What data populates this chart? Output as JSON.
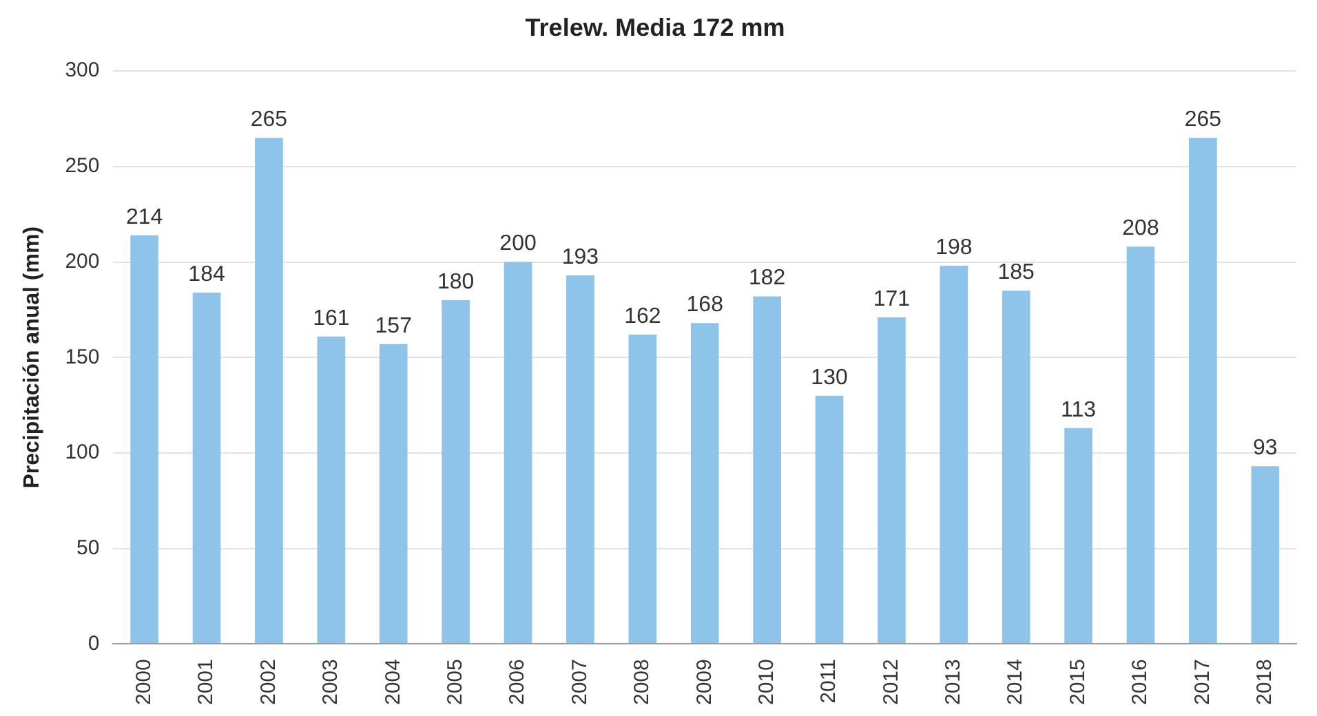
{
  "chart_data": {
    "type": "bar",
    "title": "Trelew. Media 172 mm",
    "ylabel": "Precipitación anual (mm)",
    "categories": [
      "2000",
      "2001",
      "2002",
      "2003",
      "2004",
      "2005",
      "2006",
      "2007",
      "2008",
      "2009",
      "2010",
      "2011",
      "2012",
      "2013",
      "2014",
      "2015",
      "2016",
      "2017",
      "2018"
    ],
    "values": [
      214,
      184,
      265,
      161,
      157,
      180,
      200,
      193,
      162,
      168,
      182,
      130,
      171,
      198,
      185,
      113,
      208,
      265,
      93
    ],
    "color": "#8fc4ea",
    "ylim": [
      0,
      300
    ],
    "yticks": [
      0,
      50,
      100,
      150,
      200,
      250,
      300
    ],
    "grid": "y",
    "data_labels": true
  }
}
